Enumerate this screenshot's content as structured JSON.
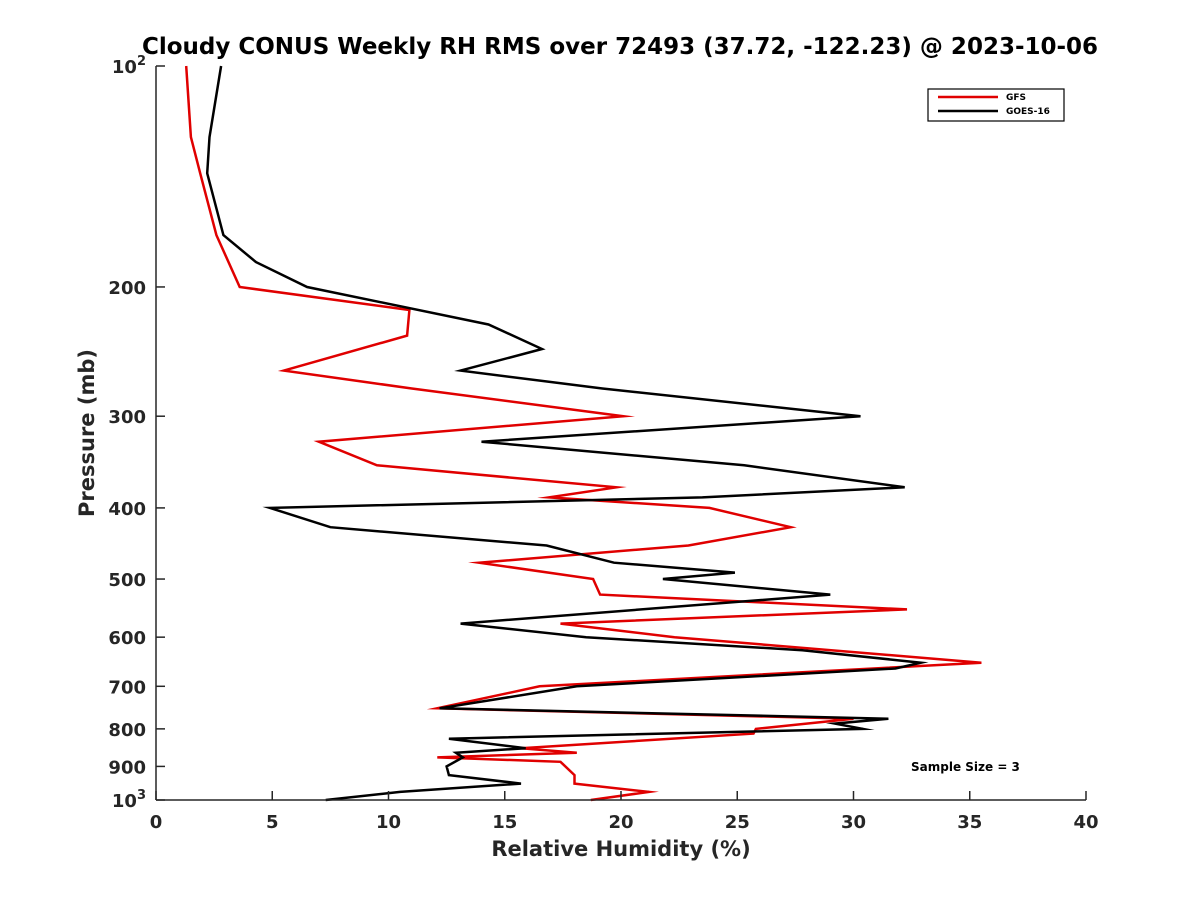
{
  "chart_data": {
    "type": "line",
    "title": "Cloudy CONUS Weekly RH RMS over 72493 (37.72, -122.23) @ 2023-10-06",
    "xlabel": "Relative Humidity (%)",
    "ylabel": "Pressure (mb)",
    "xlim": [
      0,
      40
    ],
    "ylim": [
      100,
      1000
    ],
    "yscale": "log",
    "y_reversed": true,
    "x_ticks": [
      0,
      5,
      10,
      15,
      20,
      25,
      30,
      35,
      40
    ],
    "x_tick_labels": [
      "0",
      "5",
      "10",
      "15",
      "20",
      "25",
      "30",
      "35",
      "40"
    ],
    "y_ticks": [
      100,
      200,
      300,
      400,
      500,
      600,
      700,
      800,
      900,
      1000
    ],
    "y_tick_labels": [
      {
        "base": "10",
        "sup": "2"
      },
      {
        "base": "200",
        "sup": ""
      },
      {
        "base": "300",
        "sup": ""
      },
      {
        "base": "400",
        "sup": ""
      },
      {
        "base": "500",
        "sup": ""
      },
      {
        "base": "600",
        "sup": ""
      },
      {
        "base": "700",
        "sup": ""
      },
      {
        "base": "800",
        "sup": ""
      },
      {
        "base": "900",
        "sup": ""
      },
      {
        "base": "10",
        "sup": "3"
      }
    ],
    "grid": false,
    "legend_position": "top-right",
    "annotation": "Sample Size = 3",
    "series": [
      {
        "name": "GFS",
        "color": "#e00000",
        "points": [
          [
            1.3,
            100
          ],
          [
            1.5,
            125
          ],
          [
            1.9,
            140
          ],
          [
            2.6,
            170
          ],
          [
            3.6,
            200
          ],
          [
            10.9,
            215
          ],
          [
            10.8,
            233
          ],
          [
            5.5,
            260
          ],
          [
            11.0,
            275
          ],
          [
            20.1,
            300
          ],
          [
            7.0,
            325
          ],
          [
            9.5,
            350
          ],
          [
            19.8,
            375
          ],
          [
            16.9,
            387
          ],
          [
            23.8,
            400
          ],
          [
            27.3,
            425
          ],
          [
            22.9,
            450
          ],
          [
            13.9,
            475
          ],
          [
            18.8,
            500
          ],
          [
            19.1,
            525
          ],
          [
            32.3,
            550
          ],
          [
            17.4,
            575
          ],
          [
            22.3,
            600
          ],
          [
            35.5,
            650
          ],
          [
            16.5,
            700
          ],
          [
            12.1,
            750
          ],
          [
            30.0,
            775
          ],
          [
            25.8,
            800
          ],
          [
            25.7,
            812
          ],
          [
            15.7,
            850
          ],
          [
            18.1,
            862
          ],
          [
            12.1,
            875
          ],
          [
            17.4,
            887
          ],
          [
            18.0,
            925
          ],
          [
            18.0,
            950
          ],
          [
            21.2,
            975
          ],
          [
            18.7,
            1000
          ]
        ]
      },
      {
        "name": "GOES-16",
        "color": "#000000",
        "points": [
          [
            2.8,
            100
          ],
          [
            2.3,
            125
          ],
          [
            2.2,
            140
          ],
          [
            2.9,
            170
          ],
          [
            4.3,
            185
          ],
          [
            6.5,
            200
          ],
          [
            14.3,
            225
          ],
          [
            16.6,
            243
          ],
          [
            13.1,
            260
          ],
          [
            19.2,
            275
          ],
          [
            30.3,
            300
          ],
          [
            14.0,
            325
          ],
          [
            25.3,
            350
          ],
          [
            32.2,
            375
          ],
          [
            23.5,
            387
          ],
          [
            4.9,
            400
          ],
          [
            7.5,
            425
          ],
          [
            16.8,
            450
          ],
          [
            19.7,
            475
          ],
          [
            24.9,
            490
          ],
          [
            21.8,
            500
          ],
          [
            29.0,
            525
          ],
          [
            13.1,
            575
          ],
          [
            18.5,
            600
          ],
          [
            27.8,
            625
          ],
          [
            32.9,
            650
          ],
          [
            31.8,
            662
          ],
          [
            18.1,
            700
          ],
          [
            12.2,
            750
          ],
          [
            31.5,
            775
          ],
          [
            29.2,
            787
          ],
          [
            30.4,
            800
          ],
          [
            12.6,
            825
          ],
          [
            15.9,
            850
          ],
          [
            12.9,
            862
          ],
          [
            13.2,
            875
          ],
          [
            12.5,
            900
          ],
          [
            12.6,
            925
          ],
          [
            15.7,
            950
          ],
          [
            10.5,
            975
          ],
          [
            7.3,
            1000
          ]
        ]
      }
    ]
  }
}
